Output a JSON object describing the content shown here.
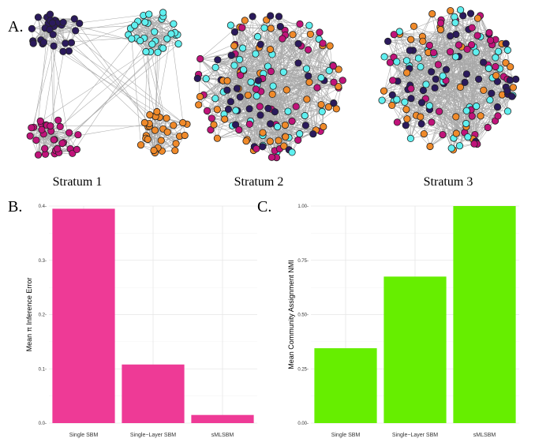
{
  "figure": {
    "panel_a_label": "A.",
    "panel_b_label": "B.",
    "panel_c_label": "C.",
    "node_colors": {
      "community_1": "#2b1a5c",
      "community_2": "#5ff0f0",
      "community_3": "#c0137a",
      "community_4": "#f08a2a"
    },
    "edge_color": "#a9a9a9"
  },
  "networks": [
    {
      "label": "Stratum 1",
      "layout": "four separated community clusters"
    },
    {
      "label": "Stratum 2",
      "layout": "mixed communities"
    },
    {
      "label": "Stratum 3",
      "layout": "mixed communities"
    }
  ],
  "chart_data": [
    {
      "type": "bar",
      "panel": "B.",
      "categories": [
        "Single SBM",
        "Single−Layer SBM",
        "sMLSBM"
      ],
      "values": [
        0.395,
        0.108,
        0.015
      ],
      "ylabel": "Mean π Inference Error",
      "ylim": [
        0,
        0.4
      ],
      "yticks": [
        0.0,
        0.1,
        0.2,
        0.3,
        0.4
      ],
      "ytick_labels": [
        "0.0",
        "0.1",
        "0.2",
        "0.3",
        "0.4"
      ],
      "bar_color": "#ee3a96",
      "grid": true
    },
    {
      "type": "bar",
      "panel": "C.",
      "categories": [
        "Single SBM",
        "Single−Layer SBM",
        "sMLSBM"
      ],
      "values": [
        0.345,
        0.675,
        1.0
      ],
      "ylabel": "Mean Community Assignment NMI",
      "ylim": [
        0,
        1.0
      ],
      "yticks": [
        0.0,
        0.25,
        0.5,
        0.75,
        1.0
      ],
      "ytick_labels": [
        "0.00",
        "0.25",
        "0.50",
        "0.75",
        "1.00"
      ],
      "bar_color": "#66ee00",
      "grid": true
    }
  ]
}
